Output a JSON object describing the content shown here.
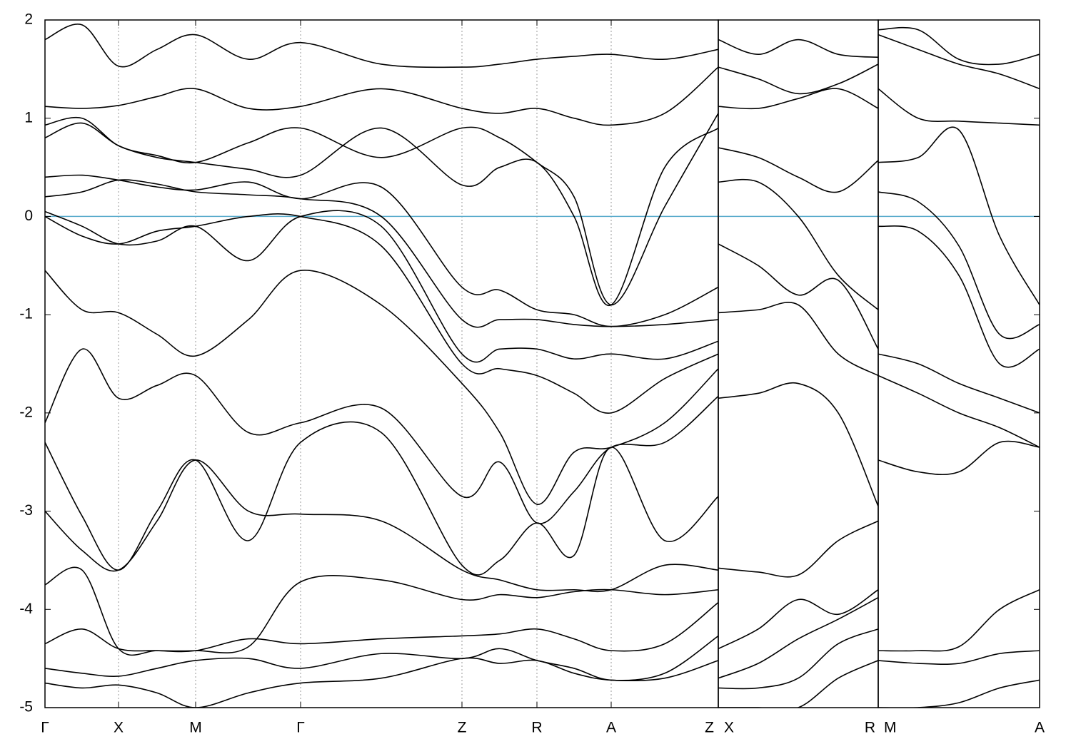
{
  "chart_data": [
    {
      "type": "line",
      "xlim": [
        0,
        943
      ],
      "ylim": [
        -5,
        2
      ],
      "yticks": [
        -5,
        -4,
        -3,
        -2,
        -1,
        0,
        1,
        2
      ],
      "xticks": [
        {
          "value": 0,
          "label": "Γ"
        },
        {
          "value": 103,
          "label": "X"
        },
        {
          "value": 211,
          "label": "M"
        },
        {
          "value": 358,
          "label": "Γ"
        },
        {
          "value": 584,
          "label": "Z"
        },
        {
          "value": 689,
          "label": "R"
        },
        {
          "value": 793,
          "label": "A"
        },
        {
          "value": 943,
          "label": "Z"
        }
      ],
      "grid": true,
      "hline": 0,
      "hline_color": "#5aaccc",
      "x": [
        0,
        52,
        103,
        157,
        211,
        285,
        358,
        471,
        584,
        637,
        689,
        741,
        793,
        868,
        943
      ],
      "series": [
        {
          "color": "#000000",
          "values": [
            1.8,
            1.95,
            1.53,
            1.7,
            1.85,
            1.6,
            1.77,
            1.55,
            1.52,
            1.55,
            1.6,
            1.63,
            1.65,
            1.6,
            1.7
          ]
        },
        {
          "color": "#000000",
          "values": [
            1.12,
            1.1,
            1.13,
            1.22,
            1.3,
            1.1,
            1.12,
            1.3,
            1.1,
            1.05,
            1.1,
            1.0,
            0.93,
            1.05,
            1.52
          ]
        },
        {
          "color": "#000000",
          "values": [
            0.93,
            1.0,
            0.72,
            0.62,
            0.55,
            0.75,
            0.9,
            0.6,
            0.9,
            0.8,
            0.55,
            0.2,
            -0.9,
            0.1,
            1.05
          ]
        },
        {
          "color": "#000000",
          "values": [
            0.8,
            0.95,
            0.72,
            0.6,
            0.55,
            0.48,
            0.42,
            0.9,
            0.32,
            0.5,
            0.55,
            0.0,
            -0.9,
            0.5,
            0.9
          ]
        },
        {
          "color": "#000000",
          "values": [
            0.4,
            0.42,
            0.37,
            0.3,
            0.27,
            0.35,
            0.18,
            0.3,
            -0.72,
            -0.75,
            -0.95,
            -1.0,
            -1.12,
            -1.0,
            -0.72
          ]
        },
        {
          "color": "#000000",
          "values": [
            0.2,
            0.25,
            0.37,
            0.33,
            0.25,
            0.22,
            0.18,
            0.0,
            -1.05,
            -1.05,
            -1.05,
            -1.1,
            -1.12,
            -1.1,
            -1.05
          ]
        },
        {
          "color": "#000000",
          "values": [
            0.05,
            -0.1,
            -0.28,
            -0.25,
            -0.1,
            -0.45,
            0.0,
            -0.1,
            -1.4,
            -1.35,
            -1.35,
            -1.45,
            -1.4,
            -1.45,
            -1.27
          ]
        },
        {
          "color": "#000000",
          "values": [
            0.0,
            -0.2,
            -0.28,
            -0.15,
            -0.1,
            0.0,
            0.0,
            -0.3,
            -1.5,
            -1.55,
            -1.62,
            -1.8,
            -2.0,
            -1.65,
            -1.4
          ]
        },
        {
          "color": "#000000",
          "values": [
            -0.55,
            -0.95,
            -0.98,
            -1.2,
            -1.42,
            -1.05,
            -0.55,
            -0.9,
            -1.7,
            -2.2,
            -2.93,
            -2.4,
            -2.35,
            -2.1,
            -1.55
          ]
        },
        {
          "color": "#000000",
          "values": [
            -2.1,
            -1.35,
            -1.85,
            -1.72,
            -1.62,
            -2.2,
            -2.1,
            -1.95,
            -2.85,
            -2.5,
            -3.12,
            -2.8,
            -2.35,
            -2.3,
            -1.83
          ]
        },
        {
          "color": "#000000",
          "values": [
            -2.3,
            -3.05,
            -3.6,
            -3.0,
            -2.48,
            -3.3,
            -2.3,
            -2.2,
            -3.55,
            -3.5,
            -3.12,
            -3.45,
            -2.35,
            -3.3,
            -2.85
          ]
        },
        {
          "color": "#000000",
          "values": [
            -3.0,
            -3.4,
            -3.6,
            -3.1,
            -2.48,
            -3.0,
            -3.03,
            -3.1,
            -3.6,
            -3.7,
            -3.8,
            -3.8,
            -3.8,
            -3.55,
            -3.6
          ]
        },
        {
          "color": "#000000",
          "values": [
            -3.75,
            -3.6,
            -4.4,
            -4.42,
            -4.42,
            -4.38,
            -3.72,
            -3.7,
            -3.9,
            -3.85,
            -3.88,
            -3.82,
            -3.8,
            -3.85,
            -3.8
          ]
        },
        {
          "color": "#000000",
          "values": [
            -4.35,
            -4.2,
            -4.4,
            -4.42,
            -4.42,
            -4.3,
            -4.35,
            -4.3,
            -4.27,
            -4.25,
            -4.2,
            -4.3,
            -4.42,
            -4.35,
            -3.93
          ]
        },
        {
          "color": "#000000",
          "values": [
            -4.6,
            -4.65,
            -4.68,
            -4.6,
            -4.52,
            -4.5,
            -4.6,
            -4.45,
            -4.5,
            -4.4,
            -4.52,
            -4.6,
            -4.72,
            -4.65,
            -4.27
          ]
        },
        {
          "color": "#000000",
          "values": [
            -4.75,
            -4.8,
            -4.77,
            -4.85,
            -5.0,
            -4.85,
            -4.75,
            -4.7,
            -4.5,
            -4.55,
            -4.52,
            -4.65,
            -4.72,
            -4.7,
            -4.52
          ]
        }
      ]
    },
    {
      "type": "line",
      "xlim": [
        0,
        224
      ],
      "ylim": [
        -5,
        2
      ],
      "xticks": [
        {
          "value": 0,
          "label": "X"
        },
        {
          "value": 224,
          "label": "R"
        }
      ],
      "grid": true,
      "hline": 0,
      "hline_color": "#5aaccc",
      "x": [
        0,
        56,
        112,
        168,
        224
      ],
      "series": [
        {
          "color": "#000000",
          "values": [
            1.8,
            1.65,
            1.8,
            1.65,
            1.62
          ]
        },
        {
          "color": "#000000",
          "values": [
            1.52,
            1.4,
            1.25,
            1.35,
            1.55
          ]
        },
        {
          "color": "#000000",
          "values": [
            1.12,
            1.1,
            1.2,
            1.3,
            1.1
          ]
        },
        {
          "color": "#000000",
          "values": [
            0.7,
            0.6,
            0.4,
            0.25,
            0.57
          ]
        },
        {
          "color": "#000000",
          "values": [
            0.35,
            0.35,
            0.0,
            -0.6,
            -0.95
          ]
        },
        {
          "color": "#000000",
          "values": [
            -0.28,
            -0.5,
            -0.8,
            -0.65,
            -1.35
          ]
        },
        {
          "color": "#000000",
          "values": [
            -0.98,
            -0.95,
            -0.9,
            -1.4,
            -1.62
          ]
        },
        {
          "color": "#000000",
          "values": [
            -1.85,
            -1.8,
            -1.7,
            -2.0,
            -2.95
          ]
        },
        {
          "color": "#000000",
          "values": [
            -3.58,
            -3.62,
            -3.65,
            -3.3,
            -3.1
          ]
        },
        {
          "color": "#000000",
          "values": [
            -4.4,
            -4.2,
            -3.9,
            -4.05,
            -3.8
          ]
        },
        {
          "color": "#000000",
          "values": [
            -4.7,
            -4.55,
            -4.3,
            -4.1,
            -3.88
          ]
        },
        {
          "color": "#000000",
          "values": [
            -4.8,
            -4.8,
            -4.7,
            -4.35,
            -4.2
          ]
        },
        {
          "color": "#000000",
          "values": [
            -5.0,
            -5.0,
            -5.0,
            -4.7,
            -4.52
          ]
        }
      ]
    },
    {
      "type": "line",
      "xlim": [
        0,
        226
      ],
      "ylim": [
        -5,
        2
      ],
      "xticks": [
        {
          "value": 0,
          "label": "M"
        },
        {
          "value": 226,
          "label": "A"
        }
      ],
      "grid": true,
      "hline": 0,
      "hline_color": "#5aaccc",
      "x": [
        0,
        56,
        113,
        170,
        226
      ],
      "series": [
        {
          "color": "#000000",
          "values": [
            1.9,
            1.9,
            1.6,
            1.55,
            1.65
          ]
        },
        {
          "color": "#000000",
          "values": [
            1.85,
            1.7,
            1.55,
            1.45,
            1.3
          ]
        },
        {
          "color": "#000000",
          "values": [
            1.3,
            1.0,
            0.97,
            0.95,
            0.93
          ]
        },
        {
          "color": "#000000",
          "values": [
            0.55,
            0.6,
            0.88,
            -0.2,
            -0.9
          ]
        },
        {
          "color": "#000000",
          "values": [
            0.25,
            0.15,
            -0.3,
            -1.2,
            -1.1
          ]
        },
        {
          "color": "#000000",
          "values": [
            -0.1,
            -0.15,
            -0.6,
            -1.5,
            -1.35
          ]
        },
        {
          "color": "#000000",
          "values": [
            -1.4,
            -1.5,
            -1.7,
            -1.85,
            -2.0
          ]
        },
        {
          "color": "#000000",
          "values": [
            -1.62,
            -1.8,
            -2.0,
            -2.15,
            -2.35
          ]
        },
        {
          "color": "#000000",
          "values": [
            -2.48,
            -2.6,
            -2.6,
            -2.3,
            -2.35
          ]
        },
        {
          "color": "#000000",
          "values": [
            -4.42,
            -4.42,
            -4.38,
            -4.0,
            -3.8
          ]
        },
        {
          "color": "#000000",
          "values": [
            -4.52,
            -4.55,
            -4.55,
            -4.45,
            -4.42
          ]
        },
        {
          "color": "#000000",
          "values": [
            -5.0,
            -5.0,
            -4.95,
            -4.8,
            -4.72
          ]
        }
      ]
    }
  ]
}
